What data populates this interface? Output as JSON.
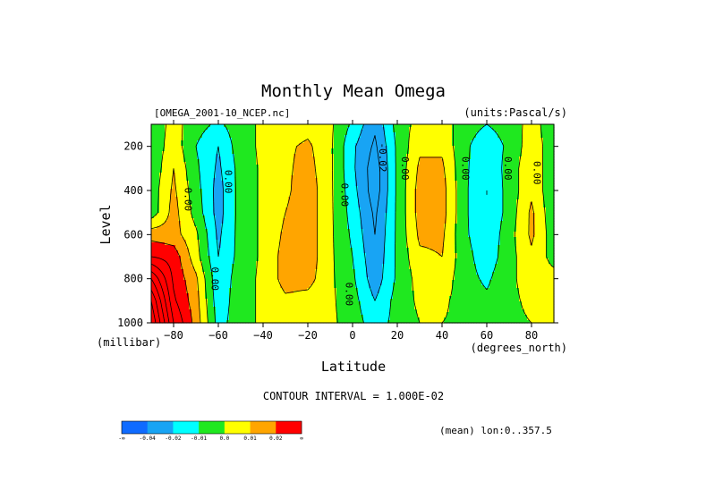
{
  "chart_data": {
    "type": "heatmap",
    "title": "Monthly Mean Omega",
    "dataset": "[OMEGA_2001-10_NCEP.nc]",
    "units": "(units:Pascal/s)",
    "xlabel": "Latitude",
    "xunits": "(degrees_north)",
    "ylabel": "Level",
    "yunits": "(millibar)",
    "xlim": [
      -90,
      90
    ],
    "ylim": [
      1000,
      100
    ],
    "xticks": [
      -80,
      -60,
      -40,
      -20,
      0,
      20,
      40,
      60,
      80
    ],
    "yticks": [
      200,
      400,
      600,
      800,
      1000
    ],
    "x": [
      -90,
      -80,
      -70,
      -60,
      -50,
      -40,
      -30,
      -20,
      -10,
      0,
      10,
      20,
      30,
      40,
      50,
      60,
      70,
      80,
      90
    ],
    "y": [
      100,
      200,
      300,
      400,
      500,
      600,
      700,
      800,
      900,
      1000
    ],
    "z": [
      [
        -0.008,
        0.004,
        -0.006,
        -0.012,
        -0.004,
        0.002,
        0.004,
        0.006,
        0.002,
        -0.012,
        -0.028,
        -0.006,
        0.004,
        0.006,
        -0.006,
        -0.01,
        -0.006,
        0.004,
        -0.006
      ],
      [
        -0.008,
        0.006,
        -0.01,
        -0.02,
        -0.004,
        0.002,
        0.008,
        0.012,
        0.002,
        -0.018,
        -0.032,
        -0.008,
        0.008,
        0.008,
        -0.008,
        -0.016,
        -0.008,
        0.006,
        -0.006
      ],
      [
        -0.008,
        0.01,
        -0.008,
        -0.022,
        -0.006,
        0.002,
        0.008,
        0.014,
        0.002,
        -0.018,
        -0.036,
        -0.008,
        0.012,
        0.012,
        -0.008,
        -0.018,
        -0.006,
        0.008,
        -0.008
      ],
      [
        -0.006,
        0.012,
        -0.006,
        -0.024,
        -0.006,
        0.002,
        0.008,
        0.016,
        0.002,
        -0.016,
        -0.036,
        -0.008,
        0.014,
        0.014,
        -0.008,
        -0.02,
        -0.006,
        0.008,
        -0.008
      ],
      [
        -0.006,
        0.014,
        -0.004,
        -0.024,
        -0.006,
        0.002,
        0.01,
        0.016,
        0.002,
        -0.014,
        -0.032,
        -0.008,
        0.014,
        0.014,
        -0.008,
        -0.02,
        -0.006,
        0.012,
        -0.008
      ],
      [
        0.016,
        0.014,
        0.002,
        -0.022,
        -0.006,
        0.002,
        0.012,
        0.016,
        0.002,
        -0.012,
        -0.03,
        -0.008,
        0.012,
        0.012,
        -0.008,
        -0.018,
        -0.004,
        0.012,
        -0.006
      ],
      [
        0.03,
        0.026,
        0.004,
        -0.02,
        -0.006,
        0.002,
        0.014,
        0.016,
        0.002,
        -0.01,
        -0.028,
        -0.008,
        0.008,
        0.01,
        -0.006,
        -0.016,
        -0.004,
        0.008,
        -0.004
      ],
      [
        0.06,
        0.028,
        0.012,
        -0.018,
        -0.004,
        0.002,
        0.014,
        0.014,
        0.002,
        -0.008,
        -0.026,
        -0.008,
        0.004,
        0.006,
        -0.006,
        -0.012,
        -0.002,
        0.004,
        0.004
      ],
      [
        0.08,
        0.032,
        0.014,
        -0.016,
        -0.004,
        0.002,
        0.008,
        0.006,
        0.002,
        -0.006,
        -0.02,
        -0.006,
        0.002,
        0.002,
        -0.004,
        -0.008,
        -0.002,
        0.002,
        0.004
      ],
      [
        0.09,
        0.04,
        0.016,
        -0.014,
        -0.004,
        0.002,
        0.004,
        0.004,
        0.002,
        -0.004,
        -0.016,
        -0.006,
        0.0,
        0.0,
        -0.002,
        -0.004,
        -0.002,
        0.0,
        0.002
      ]
    ],
    "contour_labels": [
      {
        "text": "0.00",
        "x": -75,
        "y": 440
      },
      {
        "text": "0.00",
        "x": -57,
        "y": 360
      },
      {
        "text": "0.00",
        "x": -63,
        "y": 800
      },
      {
        "text": "0.00",
        "x": -5,
        "y": 420
      },
      {
        "text": "-0.02",
        "x": 12,
        "y": 250
      },
      {
        "text": "0.00",
        "x": 22,
        "y": 300
      },
      {
        "text": "0.00",
        "x": -3,
        "y": 870
      },
      {
        "text": "0.00",
        "x": 49,
        "y": 300
      },
      {
        "text": "0.00",
        "x": 68,
        "y": 300
      },
      {
        "text": "0.00",
        "x": 81,
        "y": 320
      }
    ],
    "contour_interval": "CONTOUR INTERVAL = 1.000E-02",
    "mean_label": "(mean) lon:0..357.5",
    "legend": {
      "labels": [
        "-∞",
        "-0.04",
        "-0.02",
        "-0.01",
        "0.0",
        "0.01",
        "0.02",
        "∞"
      ],
      "colors": [
        "#0f6bff",
        "#18a4f4",
        "#00ffff",
        "#1fe81f",
        "#ffff00",
        "#ffa500",
        "#ff0000"
      ]
    },
    "colors": {
      "neg_large": "#0f6bff",
      "neg_mid": "#18a4f4",
      "neg_small": "#00ffff",
      "near_neg": "#1fe81f",
      "near_pos": "#ffff00",
      "pos_small": "#ffa500",
      "pos_large": "#ff0000"
    }
  }
}
